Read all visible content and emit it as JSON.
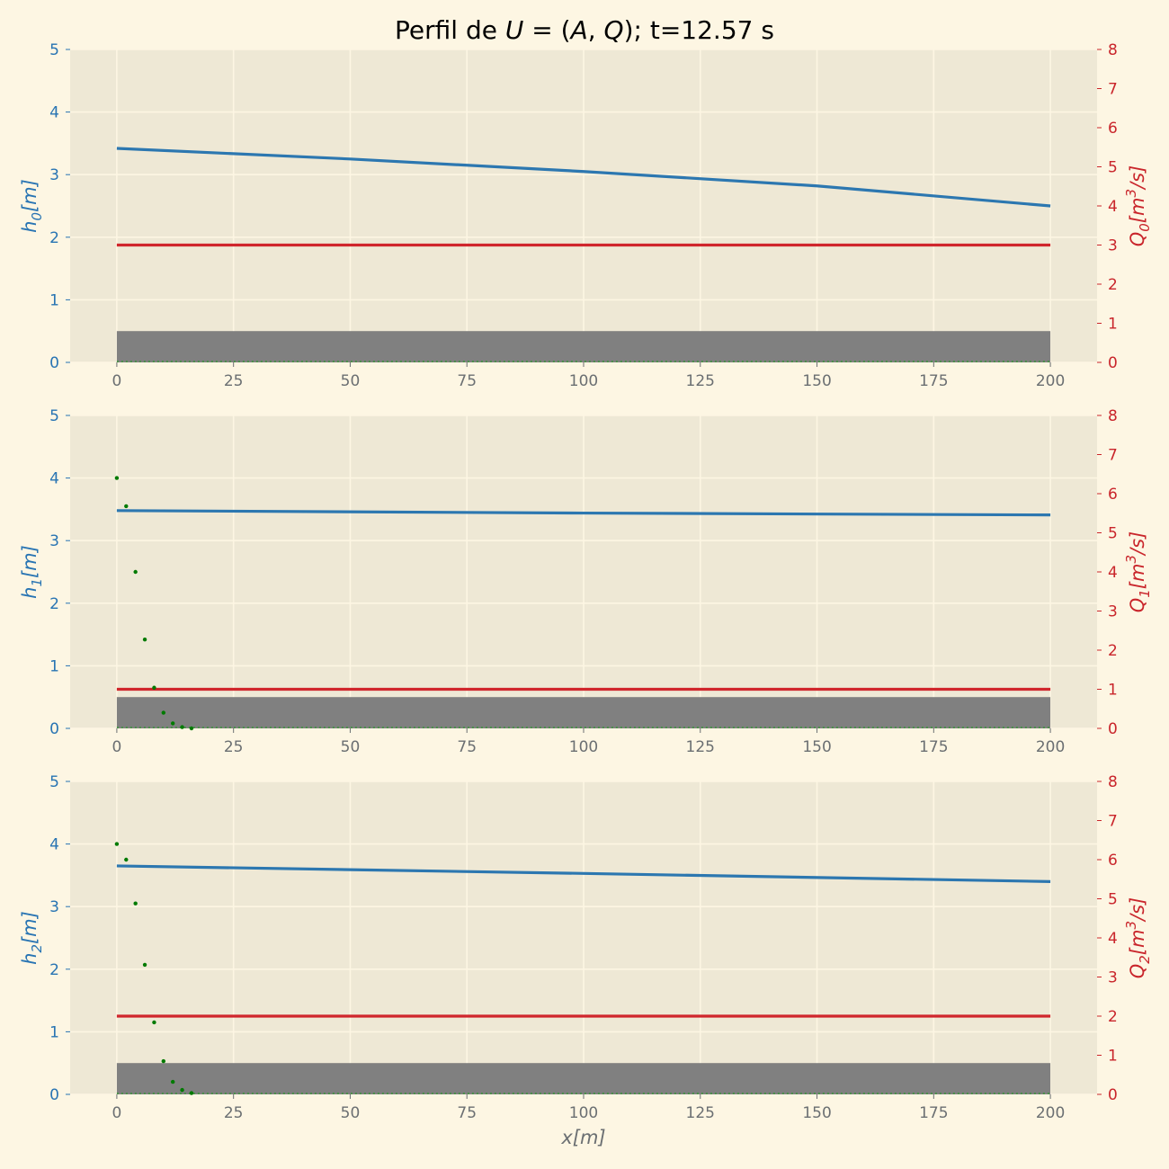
{
  "title": "Perfil de U = (A, Q); t=12.57 s",
  "xlabel": "x[m]",
  "chart_data": [
    {
      "type": "line",
      "ylabel_left": "h0[m]",
      "ylabel_right": "Q0[m3/s]",
      "xlim": [
        -10,
        210
      ],
      "ylim_left": [
        0,
        5
      ],
      "ylim_right": [
        0,
        8
      ],
      "x_ticks": [
        0,
        25,
        50,
        75,
        100,
        125,
        150,
        175,
        200
      ],
      "y_ticks_left": [
        0,
        1,
        2,
        3,
        4,
        5
      ],
      "y_ticks_right": [
        0,
        1,
        2,
        3,
        4,
        5,
        6,
        7,
        8
      ],
      "series": [
        {
          "axis": "left",
          "color": "#2c77b0",
          "x": [
            0,
            50,
            100,
            150,
            200
          ],
          "y": [
            3.42,
            3.25,
            3.05,
            2.82,
            2.5
          ]
        },
        {
          "axis": "right",
          "color": "#d0262c",
          "x": [
            0,
            200
          ],
          "y": [
            3.0,
            3.0
          ]
        }
      ],
      "bed": {
        "x": [
          0,
          200
        ],
        "height": 0.5,
        "color": "#808080"
      },
      "dots": {
        "axis": "left",
        "color": "#007a00",
        "x": [],
        "y": []
      }
    },
    {
      "type": "line",
      "ylabel_left": "h1[m]",
      "ylabel_right": "Q1[m3/s]",
      "xlim": [
        -10,
        210
      ],
      "ylim_left": [
        0,
        5
      ],
      "ylim_right": [
        0,
        8
      ],
      "x_ticks": [
        0,
        25,
        50,
        75,
        100,
        125,
        150,
        175,
        200
      ],
      "y_ticks_left": [
        0,
        1,
        2,
        3,
        4,
        5
      ],
      "y_ticks_right": [
        0,
        1,
        2,
        3,
        4,
        5,
        6,
        7,
        8
      ],
      "series": [
        {
          "axis": "left",
          "color": "#2c77b0",
          "x": [
            0,
            100,
            200
          ],
          "y": [
            3.48,
            3.44,
            3.41
          ]
        },
        {
          "axis": "right",
          "color": "#d0262c",
          "x": [
            0,
            200
          ],
          "y": [
            1.0,
            1.0
          ]
        }
      ],
      "bed": {
        "x": [
          0,
          200
        ],
        "height": 0.5,
        "color": "#808080"
      },
      "dots": {
        "axis": "left",
        "color": "#007a00",
        "x": [
          0,
          2,
          4,
          6,
          8,
          10,
          12,
          14,
          16
        ],
        "y": [
          4.0,
          3.55,
          2.5,
          1.42,
          0.65,
          0.25,
          0.08,
          0.02,
          0.0
        ]
      }
    },
    {
      "type": "line",
      "ylabel_left": "h2[m]",
      "ylabel_right": "Q2[m3/s]",
      "xlim": [
        -10,
        210
      ],
      "ylim_left": [
        0,
        5
      ],
      "ylim_right": [
        0,
        8
      ],
      "x_ticks": [
        0,
        25,
        50,
        75,
        100,
        125,
        150,
        175,
        200
      ],
      "y_ticks_left": [
        0,
        1,
        2,
        3,
        4,
        5
      ],
      "y_ticks_right": [
        0,
        1,
        2,
        3,
        4,
        5,
        6,
        7,
        8
      ],
      "series": [
        {
          "axis": "left",
          "color": "#2c77b0",
          "x": [
            0,
            100,
            200
          ],
          "y": [
            3.65,
            3.53,
            3.4
          ]
        },
        {
          "axis": "right",
          "color": "#d0262c",
          "x": [
            0,
            200
          ],
          "y": [
            2.0,
            2.0
          ]
        }
      ],
      "bed": {
        "x": [
          0,
          200
        ],
        "height": 0.5,
        "color": "#808080"
      },
      "dots": {
        "axis": "left",
        "color": "#007a00",
        "x": [
          0,
          2,
          4,
          6,
          8,
          10,
          12,
          14,
          16
        ],
        "y": [
          4.0,
          3.75,
          3.05,
          2.07,
          1.15,
          0.53,
          0.2,
          0.07,
          0.02
        ]
      }
    }
  ]
}
